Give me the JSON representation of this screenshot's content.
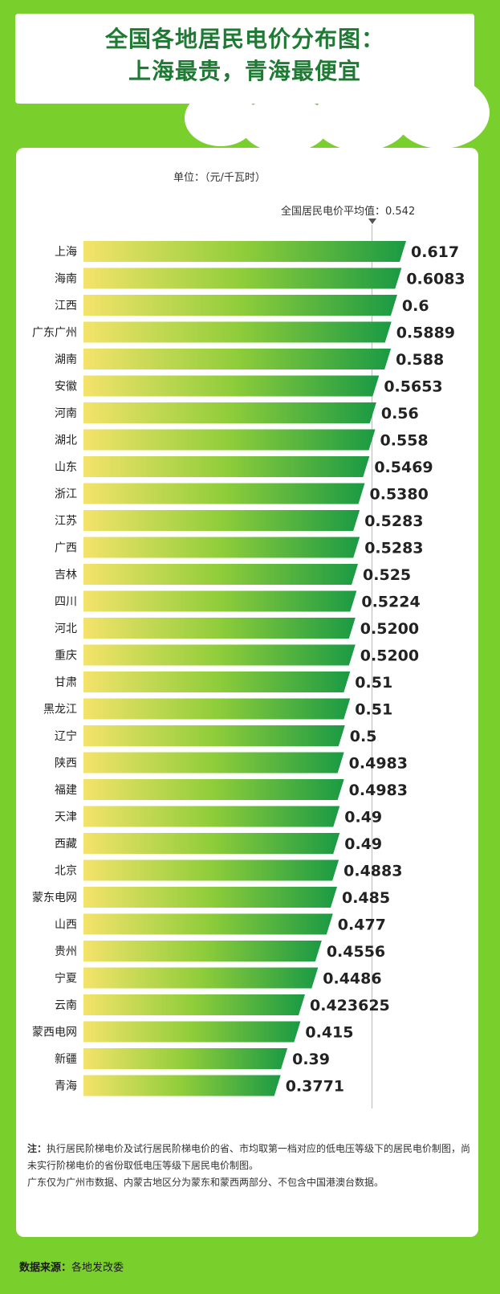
{
  "header": {
    "title_line1": "全国各地居民电价分布图：",
    "title_line2": "上海最贵，青海最便宜"
  },
  "unit_label": "单位：（元/千瓦时）",
  "average_label": "全国居民电价平均值：0.542",
  "note": {
    "prefix": "注：",
    "text1": "执行居民阶梯电价及试行居民阶梯电价的省、市均取第一档对应的低电压等级下的居民电价制图，尚未实行阶梯电价的省份取低电压等级下居民电价制图。",
    "text2": "广东仅为广州市数据、内蒙古地区分为蒙东和蒙西两部分、不包含中国港澳台数据。"
  },
  "source": {
    "label": "数据来源：",
    "value": "各地发改委"
  },
  "colors": {
    "background": "#79cf2c",
    "title": "#1f7a34",
    "bar_start": "#f4e36a",
    "bar_mid": "#8fcd3a",
    "bar_end": "#1a9a44"
  },
  "chart_data": {
    "type": "bar",
    "orientation": "horizontal",
    "title": "全国各地居民电价分布图：上海最贵，青海最便宜",
    "unit": "元/千瓦时",
    "reference_line": {
      "label": "全国居民电价平均值",
      "value": 0.542
    },
    "categories": [
      "上海",
      "海南",
      "江西",
      "广东广州",
      "湖南",
      "安徽",
      "河南",
      "湖北",
      "山东",
      "浙江",
      "江苏",
      "广西",
      "吉林",
      "四川",
      "河北",
      "重庆",
      "甘肃",
      "黑龙江",
      "辽宁",
      "陕西",
      "福建",
      "天津",
      "西藏",
      "北京",
      "蒙东电网",
      "山西",
      "贵州",
      "宁夏",
      "云南",
      "蒙西电网",
      "新疆",
      "青海"
    ],
    "values": [
      0.617,
      0.6083,
      0.6,
      0.5889,
      0.588,
      0.5653,
      0.56,
      0.558,
      0.5469,
      0.538,
      0.5283,
      0.5283,
      0.525,
      0.5224,
      0.52,
      0.52,
      0.51,
      0.51,
      0.5,
      0.4983,
      0.4983,
      0.49,
      0.49,
      0.4883,
      0.485,
      0.477,
      0.4556,
      0.4486,
      0.423625,
      0.415,
      0.39,
      0.3771
    ],
    "value_labels": [
      "0.617",
      "0.6083",
      "0.6",
      "0.5889",
      "0.588",
      "0.5653",
      "0.56",
      "0.558",
      "0.5469",
      "0.5380",
      "0.5283",
      "0.5283",
      "0.525",
      "0.5224",
      "0.5200",
      "0.5200",
      "0.51",
      "0.51",
      "0.5",
      "0.4983",
      "0.4983",
      "0.49",
      "0.49",
      "0.4883",
      "0.485",
      "0.477",
      "0.4556",
      "0.4486",
      "0.423625",
      "0.415",
      "0.39",
      "0.3771"
    ],
    "xlim": [
      0,
      0.617
    ],
    "grid": false
  }
}
